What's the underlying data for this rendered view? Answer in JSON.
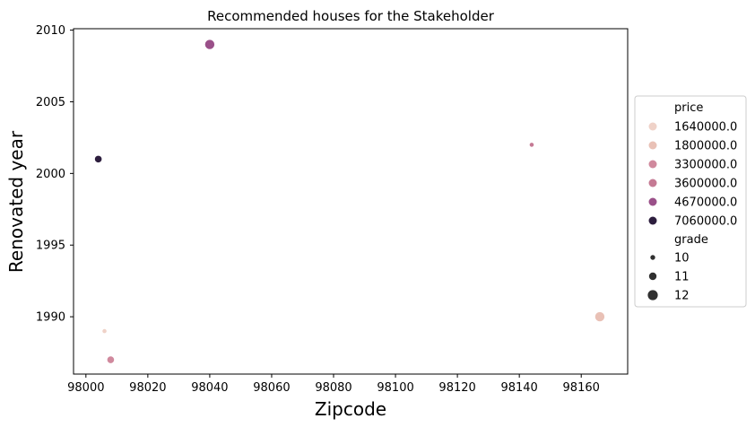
{
  "chart_data": {
    "type": "scatter",
    "title": "Recommended houses for the Stakeholder",
    "xlabel": "Zipcode",
    "ylabel": "Renovated year",
    "xlim": [
      97996,
      98175
    ],
    "ylim": [
      1986,
      2010.1
    ],
    "xticks": [
      98000,
      98020,
      98040,
      98060,
      98080,
      98100,
      98120,
      98140,
      98160
    ],
    "yticks": [
      1990,
      1995,
      2000,
      2005,
      2010
    ],
    "grid": false,
    "legend_position": "right",
    "legend": {
      "hue_title": "price",
      "hue_entries": [
        {
          "label": "1640000.0",
          "color": "#efd2c8"
        },
        {
          "label": "1800000.0",
          "color": "#e9c1b6"
        },
        {
          "label": "3300000.0",
          "color": "#d0899d"
        },
        {
          "label": "3600000.0",
          "color": "#c57a94"
        },
        {
          "label": "4670000.0",
          "color": "#9a5089"
        },
        {
          "label": "7060000.0",
          "color": "#2d1e3e"
        }
      ],
      "size_title": "grade",
      "size_entries": [
        {
          "label": "10",
          "grade": 10
        },
        {
          "label": "11",
          "grade": 11
        },
        {
          "label": "12",
          "grade": 12
        }
      ]
    },
    "points": [
      {
        "x": 98006,
        "y": 1989,
        "price": 1640000.0,
        "grade": 10
      },
      {
        "x": 98166,
        "y": 1990,
        "price": 1800000.0,
        "grade": 12
      },
      {
        "x": 98008,
        "y": 1987,
        "price": 3300000.0,
        "grade": 11
      },
      {
        "x": 98144,
        "y": 2002,
        "price": 3600000.0,
        "grade": 10
      },
      {
        "x": 98040,
        "y": 2009,
        "price": 4670000.0,
        "grade": 12
      },
      {
        "x": 98004,
        "y": 2001,
        "price": 7060000.0,
        "grade": 11
      }
    ]
  }
}
